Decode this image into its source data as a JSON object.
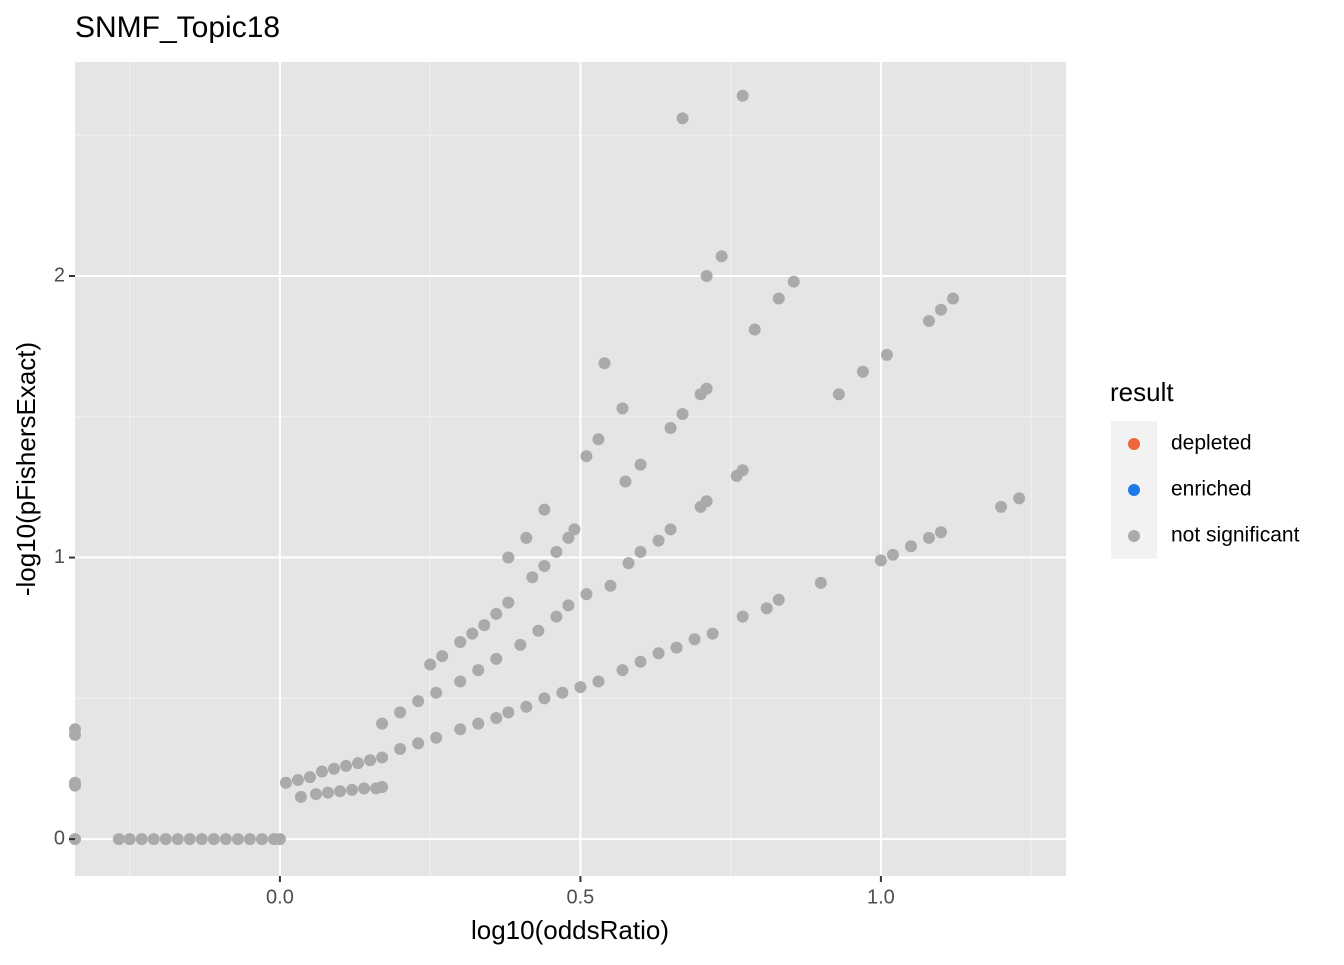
{
  "chart_data": {
    "type": "scatter",
    "title": "SNMF_Topic18",
    "x_label": "log10(oddsRatio)",
    "y_label": "-log10(pFishersExact)",
    "legend_title": "result",
    "legend_position": "right",
    "xlim": [
      -0.341,
      1.308
    ],
    "ylim": [
      -0.131,
      2.76
    ],
    "xticks": [
      {
        "value": 0,
        "label": "0.0"
      },
      {
        "value": 0.5,
        "label": "0.5"
      },
      {
        "value": 1,
        "label": "1.0"
      }
    ],
    "yticks": [
      0,
      1,
      2
    ],
    "x_minor_grid": [
      -0.25,
      0.25,
      0.75,
      1.25
    ],
    "y_minor_grid": [
      0.5,
      1.5,
      2.5
    ],
    "grid": true,
    "series": [
      {
        "name": "depleted",
        "color": "#F0643A",
        "x": [],
        "values": []
      },
      {
        "name": "enriched",
        "color": "#1F78E8",
        "x": [],
        "values": []
      },
      {
        "name": "not significant",
        "color": "#AAAAAA",
        "x": [
          -0.341,
          -0.341,
          -0.341,
          -0.341,
          -0.341,
          -0.268,
          -0.25,
          -0.23,
          -0.21,
          -0.19,
          -0.17,
          -0.15,
          -0.13,
          -0.11,
          -0.09,
          -0.07,
          -0.05,
          -0.03,
          -0.01,
          0.0,
          0.01,
          0.03,
          0.05,
          0.07,
          0.09,
          0.11,
          0.13,
          0.15,
          0.17,
          0.2,
          0.23,
          0.26,
          0.3,
          0.33,
          0.36,
          0.38,
          0.41,
          0.44,
          0.47,
          0.5,
          0.53,
          0.57,
          0.6,
          0.63,
          0.66,
          0.69,
          0.72,
          0.77,
          0.81,
          0.83,
          0.9,
          1.0,
          1.02,
          1.05,
          1.08,
          1.1,
          1.2,
          1.23,
          0.035,
          0.06,
          0.08,
          0.1,
          0.12,
          0.14,
          0.16,
          0.17,
          0.17,
          0.2,
          0.23,
          0.26,
          0.3,
          0.33,
          0.36,
          0.4,
          0.43,
          0.46,
          0.48,
          0.51,
          0.55,
          0.58,
          0.6,
          0.63,
          0.65,
          0.7,
          0.71,
          0.76,
          0.77,
          0.25,
          0.27,
          0.3,
          0.32,
          0.34,
          0.36,
          0.38,
          0.38,
          0.41,
          0.42,
          0.44,
          0.46,
          0.48,
          0.49,
          0.44,
          0.51,
          0.53,
          0.54,
          0.57,
          0.575,
          0.6,
          0.65,
          0.67,
          0.7,
          0.71,
          0.67,
          0.77,
          0.71,
          0.735,
          0.79,
          0.83,
          0.855,
          0.93,
          0.97,
          1.01,
          1.08,
          1.1,
          1.12
        ],
        "values": [
          0.39,
          0.37,
          0.2,
          0.19,
          0,
          0,
          0,
          0,
          0,
          0,
          0,
          0,
          0,
          0,
          0,
          0,
          0,
          0,
          0,
          0,
          0.2,
          0.21,
          0.22,
          0.24,
          0.25,
          0.26,
          0.27,
          0.28,
          0.29,
          0.32,
          0.34,
          0.36,
          0.39,
          0.41,
          0.43,
          0.45,
          0.47,
          0.5,
          0.52,
          0.54,
          0.56,
          0.6,
          0.63,
          0.66,
          0.68,
          0.71,
          0.73,
          0.79,
          0.82,
          0.85,
          0.91,
          0.99,
          1.01,
          1.04,
          1.07,
          1.09,
          1.18,
          1.21,
          0.15,
          0.16,
          0.165,
          0.17,
          0.175,
          0.18,
          0.18,
          0.185,
          0.41,
          0.45,
          0.49,
          0.52,
          0.56,
          0.6,
          0.64,
          0.69,
          0.74,
          0.79,
          0.83,
          0.87,
          0.9,
          0.98,
          1.02,
          1.06,
          1.1,
          1.18,
          1.2,
          1.29,
          1.31,
          0.62,
          0.65,
          0.7,
          0.73,
          0.76,
          0.8,
          0.84,
          1.0,
          1.07,
          0.93,
          0.97,
          1.02,
          1.07,
          1.1,
          1.17,
          1.36,
          1.42,
          1.69,
          1.53,
          1.27,
          1.33,
          1.46,
          1.51,
          1.58,
          1.6,
          2.56,
          2.64,
          2.0,
          2.07,
          1.81,
          1.92,
          1.98,
          1.58,
          1.66,
          1.72,
          1.84,
          1.88,
          1.92
        ]
      }
    ]
  }
}
